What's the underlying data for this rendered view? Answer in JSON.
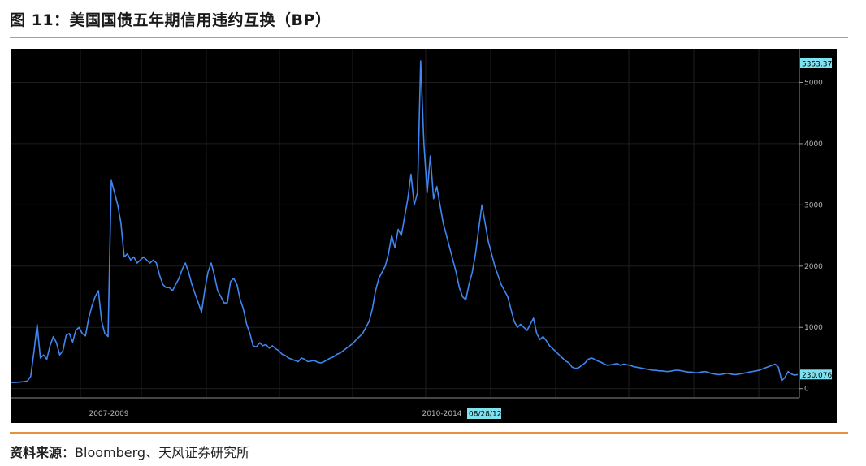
{
  "header": {
    "title": "图 11：美国国债五年期信用违约互换（BP）"
  },
  "footer": {
    "source_label": "资料来源",
    "source_sep": "：",
    "source_text": "Bloomberg、天风证券研究所"
  },
  "colors": {
    "accent": "#e8913d",
    "line": "#3f86f0",
    "background": "#000000",
    "tag": "#7fe0ee",
    "axis": "#9a9a9a"
  },
  "chart_data": {
    "type": "line",
    "ylim": [
      -150,
      5550
    ],
    "yticks": [
      0,
      1000,
      2000,
      3000,
      4000,
      5000
    ],
    "ytick_labels": [
      "0",
      "1000",
      "2000",
      "3000",
      "4000",
      "5000"
    ],
    "x_period_labels": [
      "2007-2009",
      "2010-2014"
    ],
    "date_tag": "08/28/12",
    "grid": true,
    "legend": "none",
    "annotations": {
      "max_label": "5353.375",
      "last_label": "230.076"
    },
    "series": [
      {
        "values": [
          100,
          100,
          105,
          110,
          115,
          125,
          200,
          600,
          1050,
          500,
          550,
          480,
          700,
          850,
          750,
          550,
          620,
          870,
          900,
          760,
          950,
          1000,
          900,
          860,
          1150,
          1350,
          1500,
          1600,
          1100,
          900,
          850,
          3400,
          3200,
          3000,
          2700,
          2150,
          2200,
          2100,
          2150,
          2050,
          2100,
          2150,
          2100,
          2050,
          2100,
          2050,
          1850,
          1700,
          1650,
          1650,
          1600,
          1700,
          1800,
          1950,
          2050,
          1900,
          1700,
          1550,
          1400,
          1250,
          1600,
          1900,
          2050,
          1850,
          1600,
          1500,
          1400,
          1400,
          1750,
          1800,
          1700,
          1450,
          1300,
          1050,
          900,
          700,
          680,
          750,
          700,
          720,
          660,
          700,
          650,
          620,
          560,
          540,
          500,
          480,
          460,
          440,
          500,
          480,
          440,
          450,
          460,
          430,
          420,
          440,
          470,
          500,
          520,
          560,
          580,
          620,
          660,
          700,
          740,
          800,
          850,
          900,
          1000,
          1100,
          1300,
          1600,
          1800,
          1900,
          2000,
          2200,
          2500,
          2300,
          2600,
          2500,
          2800,
          3100,
          3500,
          3000,
          3200,
          5350,
          4000,
          3200,
          3800,
          3100,
          3300,
          3000,
          2700,
          2500,
          2300,
          2100,
          1900,
          1650,
          1500,
          1450,
          1700,
          1900,
          2200,
          2600,
          3000,
          2700,
          2400,
          2200,
          2000,
          1850,
          1700,
          1600,
          1500,
          1300,
          1100,
          1000,
          1050,
          1000,
          950,
          1050,
          1150,
          900,
          800,
          850,
          780,
          700,
          650,
          600,
          550,
          500,
          450,
          420,
          350,
          330,
          340,
          380,
          420,
          480,
          500,
          480,
          450,
          430,
          400,
          380,
          390,
          400,
          410,
          380,
          400,
          390,
          380,
          360,
          350,
          340,
          330,
          320,
          310,
          300,
          300,
          290,
          290,
          280,
          280,
          290,
          300,
          300,
          290,
          280,
          270,
          270,
          260,
          260,
          270,
          280,
          270,
          250,
          240,
          230,
          230,
          240,
          250,
          240,
          230,
          230,
          240,
          250,
          260,
          270,
          280,
          290,
          300,
          320,
          340,
          360,
          380,
          400,
          350,
          130,
          180,
          280,
          240,
          220,
          230
        ]
      }
    ]
  }
}
